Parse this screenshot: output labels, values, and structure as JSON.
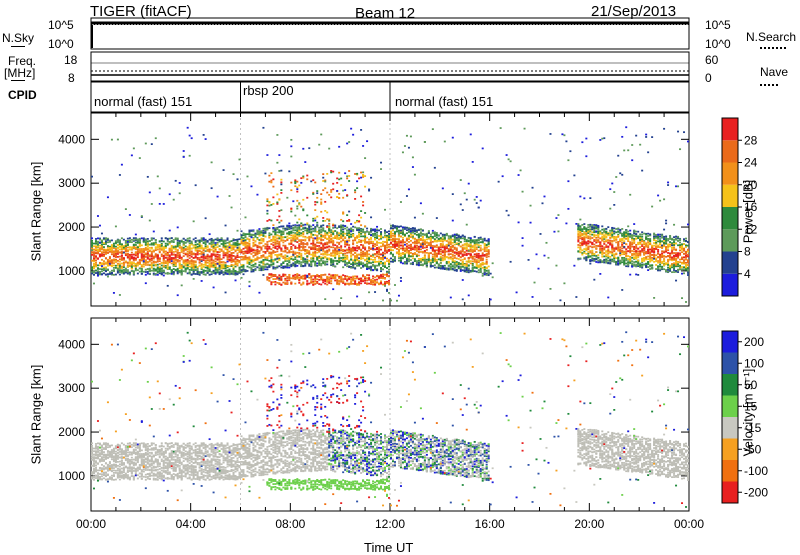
{
  "header": {
    "radar": "TIGER (fitACF)",
    "beam": "Beam 12",
    "date": "21/Sep/2013"
  },
  "top_panels": {
    "nsky": {
      "label": "N.Sky",
      "ticks": [
        "10^5",
        "10^0"
      ]
    },
    "nsearch": {
      "label": "N.Search",
      "ticks": [
        "10^5",
        "10^0"
      ]
    },
    "freq": {
      "label_line1": "Freq.",
      "label_line2": "[MHz]",
      "ticks": [
        "18",
        "8"
      ]
    },
    "nave": {
      "label": "Nave",
      "ticks": [
        "60",
        "0"
      ]
    },
    "cpid": {
      "label": "CPID"
    }
  },
  "cpid_segments": [
    {
      "label": "normal (fast) 151",
      "start_hour": 0,
      "end_hour": 6
    },
    {
      "label": "rbsp 200",
      "start_hour": 6,
      "end_hour": 12
    },
    {
      "label": "normal (fast) 151",
      "start_hour": 12,
      "end_hour": 24
    }
  ],
  "colors": {
    "power_bar": [
      "#1c1cdc",
      "#23418f",
      "#5e9a5a",
      "#2e8a3c",
      "#f5c21a",
      "#f2901a",
      "#ea6a1a",
      "#e82020"
    ],
    "velocity_bar": [
      "#1c1cdc",
      "#2d52a8",
      "#1f8a3c",
      "#6cd04a",
      "#c8c8c0",
      "#f5a020",
      "#f07010",
      "#e82020"
    ],
    "ground_scatter": "#bebeb6"
  },
  "chart_data": [
    {
      "type": "heatmap",
      "name": "power",
      "xlabel": "",
      "ylabel": "Slant Range [km]",
      "xlim": [
        0,
        24
      ],
      "ylim": [
        200,
        4600
      ],
      "y_ticks": [
        "1000",
        "2000",
        "3000",
        "4000"
      ],
      "colorbar": {
        "label": "Power [dB]",
        "ticks": [
          "4",
          "8",
          "12",
          "16",
          "20",
          "24",
          "28"
        ],
        "range": [
          0,
          32
        ]
      }
    },
    {
      "type": "heatmap",
      "name": "velocity",
      "xlabel": "Time UT",
      "ylabel": "Slant Range [km]",
      "xlim": [
        0,
        24
      ],
      "ylim": [
        200,
        4600
      ],
      "x_ticks": [
        "00:00",
        "04:00",
        "08:00",
        "12:00",
        "16:00",
        "20:00",
        "00:00"
      ],
      "y_ticks": [
        "1000",
        "2000",
        "3000",
        "4000"
      ],
      "colorbar": {
        "label": "Velocity [m s⁻¹]",
        "ticks": [
          "200",
          "100",
          "50",
          "15",
          "-15",
          "-50",
          "-100",
          "-200"
        ]
      }
    }
  ]
}
